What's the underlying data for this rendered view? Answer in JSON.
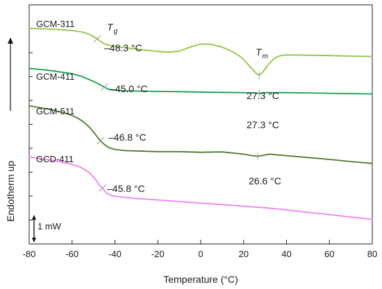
{
  "chart_data": {
    "type": "line",
    "xlabel": "Temperature (°C)",
    "ylabel": "Endotherm up",
    "xlim": [
      -80,
      80
    ],
    "x_ticks": [
      -80,
      -60,
      -40,
      -20,
      0,
      20,
      40,
      60,
      80
    ],
    "y_ticks_labeled": false,
    "grid": false,
    "scale_bar": {
      "label": "1 mW",
      "value_mW": 1
    },
    "transition_labels": {
      "glass": "T",
      "glass_sub": "g",
      "melt": "T",
      "melt_sub": "m"
    },
    "series": [
      {
        "name": "GCM-311",
        "color": "#8dc63f",
        "tg": {
          "x": -48.3,
          "label": "–48.3 °C"
        },
        "tm": {
          "x": 27.3,
          "label": "27.3 °C"
        },
        "x": [
          -80,
          -70,
          -60,
          -55,
          -52,
          -50,
          -48,
          -46,
          -44,
          -40,
          -35,
          -30,
          -25,
          -20,
          -15,
          -10,
          -5,
          0,
          5,
          10,
          15,
          18,
          20,
          22,
          24,
          26,
          27.3,
          28.5,
          30,
          32,
          34,
          36,
          38,
          40,
          45,
          50,
          60,
          70,
          80
        ],
        "y": [
          0,
          -0.02,
          -0.07,
          -0.12,
          -0.19,
          -0.26,
          -0.35,
          -0.45,
          -0.52,
          -0.58,
          -0.62,
          -0.66,
          -0.7,
          -0.74,
          -0.76,
          -0.73,
          -0.6,
          -0.5,
          -0.51,
          -0.6,
          -0.75,
          -0.88,
          -1.0,
          -1.15,
          -1.3,
          -1.45,
          -1.5,
          -1.44,
          -1.3,
          -1.12,
          -0.98,
          -0.9,
          -0.86,
          -0.85,
          -0.85,
          -0.86,
          -0.87,
          -0.89,
          -0.9
        ]
      },
      {
        "name": "GCM-411",
        "color": "#10a14a",
        "tg": {
          "x": -45.0,
          "label": "–45.0 °C"
        },
        "tm": {
          "x": 27.3,
          "label": "27.3 °C"
        },
        "x": [
          -80,
          -70,
          -60,
          -55,
          -50,
          -47,
          -45,
          -43,
          -40,
          -35,
          -30,
          -20,
          -10,
          0,
          10,
          20,
          25,
          27.3,
          30,
          35,
          40,
          50,
          60,
          70,
          80
        ],
        "y": [
          -1.28,
          -1.35,
          -1.45,
          -1.55,
          -1.7,
          -1.8,
          -1.88,
          -1.95,
          -1.98,
          -2.0,
          -2.01,
          -2.02,
          -2.03,
          -2.04,
          -2.05,
          -2.06,
          -2.07,
          -2.08,
          -2.06,
          -2.06,
          -2.06,
          -2.07,
          -2.08,
          -2.09,
          -2.1
        ]
      },
      {
        "name": "GCM-511",
        "color": "#4a7a2a",
        "tg": {
          "x": -46.8,
          "label": "–46.8 °C"
        },
        "tm": {
          "x": 26.6,
          "label": "26.6 °C"
        },
        "x": [
          -80,
          -70,
          -62,
          -58,
          -55,
          -52,
          -50,
          -48,
          -46.8,
          -45,
          -43,
          -40,
          -35,
          -30,
          -20,
          -10,
          0,
          10,
          20,
          24,
          26.6,
          29,
          32,
          35,
          40,
          50,
          60,
          70,
          80
        ],
        "y": [
          -2.48,
          -2.6,
          -2.74,
          -2.85,
          -2.98,
          -3.16,
          -3.32,
          -3.5,
          -3.6,
          -3.72,
          -3.82,
          -3.88,
          -3.92,
          -3.93,
          -3.95,
          -3.95,
          -3.97,
          -3.96,
          -4.03,
          -4.08,
          -4.1,
          -4.07,
          -4.03,
          -4.05,
          -4.08,
          -4.14,
          -4.2,
          -4.27,
          -4.33
        ]
      },
      {
        "name": "GCD-411",
        "color": "#ee82ee",
        "tg": {
          "x": -45.8,
          "label": "–45.8 °C"
        },
        "x": [
          -80,
          -70,
          -62,
          -56,
          -52,
          -49,
          -47,
          -45.8,
          -44,
          -42,
          -40,
          -35,
          -30,
          -20,
          -10,
          0,
          10,
          20,
          30,
          40,
          50,
          60,
          70,
          80
        ],
        "y": [
          -4.12,
          -4.22,
          -4.32,
          -4.45,
          -4.62,
          -4.85,
          -5.05,
          -5.12,
          -5.28,
          -5.35,
          -5.38,
          -5.42,
          -5.45,
          -5.5,
          -5.55,
          -5.6,
          -5.65,
          -5.7,
          -5.75,
          -5.82,
          -5.9,
          -5.97,
          -6.05,
          -6.12
        ]
      }
    ]
  }
}
